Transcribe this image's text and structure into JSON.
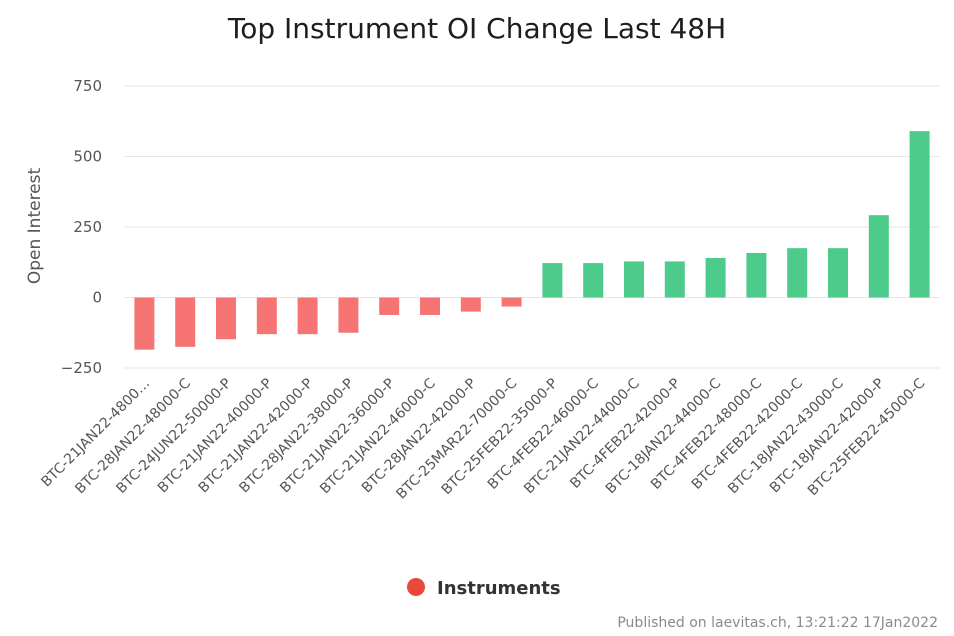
{
  "chart_data": {
    "type": "bar",
    "title": "Top Instrument OI Change Last 48H",
    "ylabel": "Open Interest",
    "ylim": [
      -250,
      750
    ],
    "yticks": [
      750,
      500,
      250,
      0,
      -250
    ],
    "ytick_labels": [
      "750",
      "500",
      "250",
      "0",
      "−250"
    ],
    "grid": true,
    "categories": [
      "BTC-21JAN22-4800…",
      "BTC-28JAN22-48000-C",
      "BTC-24JUN22-50000-P",
      "BTC-21JAN22-40000-P",
      "BTC-21JAN22-42000-P",
      "BTC-28JAN22-38000-P",
      "BTC-21JAN22-36000-P",
      "BTC-21JAN22-46000-C",
      "BTC-28JAN22-42000-P",
      "BTC-25MAR22-70000-C",
      "BTC-25FEB22-35000-P",
      "BTC-4FEB22-46000-C",
      "BTC-21JAN22-44000-C",
      "BTC-4FEB22-42000-P",
      "BTC-18JAN22-44000-C",
      "BTC-4FEB22-48000-C",
      "BTC-4FEB22-42000-C",
      "BTC-18JAN22-43000-C",
      "BTC-18JAN22-42000-P",
      "BTC-25FEB22-45000-C"
    ],
    "series": [
      {
        "name": "Instruments",
        "values": [
          -185,
          -175,
          -148,
          -130,
          -130,
          -125,
          -62,
          -62,
          -50,
          -32,
          122,
          122,
          128,
          128,
          140,
          158,
          175,
          175,
          292,
          590
        ]
      }
    ],
    "legend_position": "bottom-center"
  },
  "colors": {
    "positive": "#4ccb8a",
    "negative": "#f77474",
    "legend_marker": "#e8473c"
  },
  "credit": "Published on laevitas.ch, 13:21:22 17Jan2022"
}
